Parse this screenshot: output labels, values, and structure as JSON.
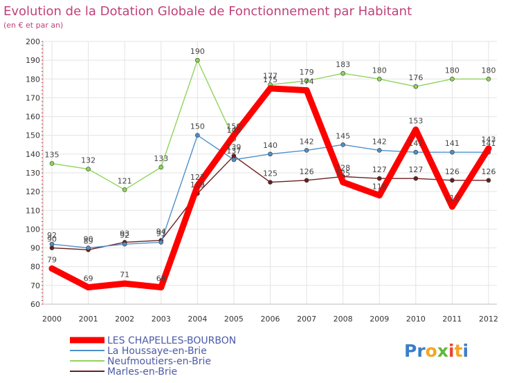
{
  "chart_data": {
    "type": "line",
    "title": "Evolution de la Dotation Globale de Fonctionnement par Habitant",
    "subtitle": "(en € et par an)",
    "xlabel": "",
    "ylabel": "",
    "ylim": [
      60,
      200
    ],
    "yticks": [
      60,
      70,
      80,
      90,
      100,
      110,
      120,
      130,
      140,
      150,
      160,
      170,
      180,
      190,
      200
    ],
    "categories": [
      "2000",
      "2001",
      "2002",
      "2003",
      "2004",
      "2005",
      "2006",
      "2007",
      "2008",
      "2009",
      "2010",
      "2011",
      "2012"
    ],
    "series": [
      {
        "name": "Marles-en-Brie",
        "color": "#6b1d1d",
        "values": [
          90,
          89,
          93,
          94,
          119,
          139,
          125,
          126,
          128,
          127,
          127,
          126,
          126
        ],
        "value_labels": [
          "90",
          "89",
          "93",
          "94",
          "119",
          "139",
          "125",
          "126",
          "128",
          "127",
          "127",
          "126",
          "126"
        ]
      },
      {
        "name": "Neufmoutiers-en-Brie",
        "color": "#8fd45a",
        "values": [
          135,
          132,
          121,
          133,
          190,
          148,
          177,
          179,
          183,
          180,
          176,
          180,
          180
        ],
        "value_labels": [
          "135",
          "132",
          "121",
          "133",
          "190",
          "148",
          "177",
          "179",
          "183",
          "180",
          "176",
          "180",
          "180"
        ]
      },
      {
        "name": "La Houssaye-en-Brie",
        "color": "#4f8fc8",
        "values": [
          92,
          90,
          92,
          93,
          150,
          137,
          140,
          142,
          145,
          142,
          141,
          141,
          141
        ],
        "value_labels": [
          "92",
          "90",
          "92",
          "93",
          "150",
          "137",
          "140",
          "142",
          "145",
          "142",
          "141",
          "141",
          "141"
        ]
      },
      {
        "name": "LES CHAPELLES-BOURBON",
        "color": "#ff0000",
        "values": [
          79,
          69,
          71,
          69,
          123,
          150,
          175,
          174,
          125,
          118,
          153,
          112,
          143
        ],
        "value_labels": [
          "79",
          "69",
          "71",
          "69",
          "123",
          "150",
          "175",
          "174",
          "125",
          "118",
          "153",
          "112",
          "143"
        ]
      }
    ],
    "legend": [
      "LES CHAPELLES-BOURBON",
      "La Houssaye-en-Brie",
      "Neufmoutiers-en-Brie",
      "Marles-en-Brie"
    ],
    "legend_position": "bottom-left",
    "grid": true
  },
  "colors": {
    "title": "#c0407a",
    "legend_text": "#4a5aa8",
    "axis_text": "#333333",
    "grid": "#e3e3e3",
    "background": "#ffffff"
  },
  "branding": {
    "logo_text": "Proxiti",
    "logo_letters": [
      "P",
      "r",
      "o",
      "x",
      "i",
      "t",
      "i"
    ],
    "logo_colors": [
      "#3a7ec8",
      "#3a7ec8",
      "#f5a623",
      "#5fb83a",
      "#e8462d",
      "#f5a623",
      "#3a7ec8"
    ]
  }
}
